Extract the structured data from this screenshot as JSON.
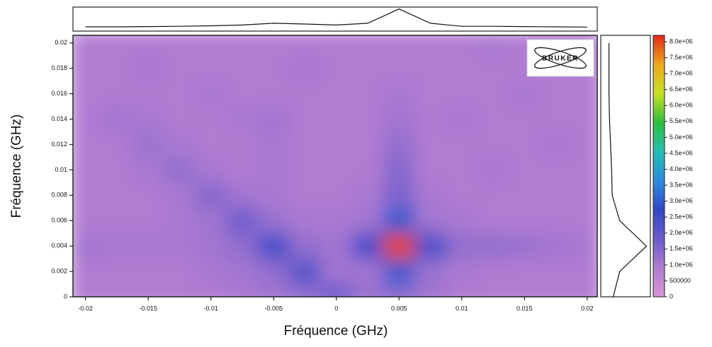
{
  "chart_data": {
    "type": "heatmap",
    "xlabel": "Fréquence (GHz)",
    "ylabel": "Fréquence (GHz)",
    "logo": "BRUKER",
    "x": [
      -0.02,
      -0.0175,
      -0.015,
      -0.0125,
      -0.01,
      -0.0075,
      -0.005,
      -0.0025,
      0,
      0.0025,
      0.005,
      0.0075,
      0.01,
      0.0125,
      0.015,
      0.0175,
      0.02
    ],
    "y": [
      0,
      0.002,
      0.004,
      0.006,
      0.008,
      0.01,
      0.012,
      0.014,
      0.016,
      0.018,
      0.02
    ],
    "z": [
      [
        900000,
        900000,
        900000,
        900000,
        900000,
        1000000,
        1100000,
        1300000,
        1800000,
        1200000,
        1400000,
        1100000,
        900000,
        900000,
        900000,
        900000,
        900000
      ],
      [
        900000,
        900000,
        900000,
        900000,
        1000000,
        1100000,
        1300000,
        2200000,
        1100000,
        1100000,
        3000000,
        1200000,
        1000000,
        900000,
        900000,
        900000,
        900000
      ],
      [
        1100000,
        1000000,
        1000000,
        1000000,
        1100000,
        1300000,
        2500000,
        1300000,
        1100000,
        2500000,
        8000000,
        2500000,
        1300000,
        1300000,
        1200000,
        1100000,
        1000000
      ],
      [
        900000,
        900000,
        900000,
        1000000,
        1100000,
        1800000,
        1200000,
        1000000,
        1000000,
        1100000,
        3000000,
        1100000,
        1000000,
        900000,
        900000,
        900000,
        900000
      ],
      [
        900000,
        900000,
        900000,
        1000000,
        1500000,
        1100000,
        1000000,
        900000,
        900000,
        1000000,
        1600000,
        1000000,
        900000,
        900000,
        900000,
        900000,
        900000
      ],
      [
        900000,
        900000,
        1000000,
        1300000,
        1000000,
        900000,
        1000000,
        900000,
        900000,
        900000,
        1500000,
        900000,
        900000,
        1000000,
        900000,
        900000,
        900000
      ],
      [
        900000,
        900000,
        1200000,
        1000000,
        900000,
        900000,
        1000000,
        900000,
        900000,
        900000,
        1300000,
        900000,
        900000,
        900000,
        900000,
        1000000,
        900000
      ],
      [
        900000,
        1100000,
        1000000,
        900000,
        900000,
        1000000,
        1100000,
        900000,
        900000,
        900000,
        1100000,
        900000,
        1000000,
        900000,
        900000,
        900000,
        900000
      ],
      [
        900000,
        900000,
        900000,
        900000,
        1000000,
        900000,
        900000,
        900000,
        900000,
        900000,
        1000000,
        900000,
        900000,
        900000,
        1000000,
        900000,
        900000
      ],
      [
        900000,
        900000,
        1000000,
        900000,
        900000,
        900000,
        900000,
        1000000,
        900000,
        900000,
        900000,
        900000,
        900000,
        900000,
        900000,
        900000,
        900000
      ],
      [
        900000,
        900000,
        900000,
        900000,
        900000,
        900000,
        900000,
        900000,
        900000,
        900000,
        900000,
        900000,
        900000,
        1000000,
        900000,
        900000,
        900000
      ]
    ],
    "xlim": [
      -0.021,
      0.0208
    ],
    "ylim": [
      0,
      0.0206
    ],
    "xticks": [
      -0.02,
      -0.015,
      -0.01,
      -0.005,
      0,
      0.005,
      0.01,
      0.015,
      0.02
    ],
    "yticks": [
      0,
      0.002,
      0.004,
      0.006,
      0.008,
      0.01,
      0.012,
      0.014,
      0.016,
      0.018,
      0.02
    ],
    "clim": [
      0,
      8200000
    ],
    "cticks": [
      0,
      500000,
      {
        "value": 1000000,
        "label": "1.0e+06"
      },
      {
        "value": 1500000,
        "label": "1.5e+06"
      },
      {
        "value": 2000000,
        "label": "2.0e+06"
      },
      {
        "value": 2500000,
        "label": "2.5e+06"
      },
      {
        "value": 3000000,
        "label": "3.0e+06"
      },
      {
        "value": 3500000,
        "label": "3.5e+06"
      },
      {
        "value": 4000000,
        "label": "4.0e+06"
      },
      {
        "value": 4500000,
        "label": "4.5e+06"
      },
      {
        "value": 5000000,
        "label": "5.0e+06"
      },
      {
        "value": 5500000,
        "label": "5.5e+06"
      },
      {
        "value": 6000000,
        "label": "6.0e+06"
      },
      {
        "value": 6500000,
        "label": "6.5e+06"
      },
      {
        "value": 7000000,
        "label": "7.0e+06"
      },
      {
        "value": 7500000,
        "label": "7.5e+06"
      },
      {
        "value": 8000000,
        "label": "8.0e+06"
      }
    ],
    "colorscale": [
      "#dc94d6",
      "#b07cd2",
      "#6c5ccc",
      "#3048c8",
      "#2c8ce0",
      "#22c0b4",
      "#2cc03c",
      "#c8e020",
      "#f0a81c",
      "#e42818"
    ]
  }
}
